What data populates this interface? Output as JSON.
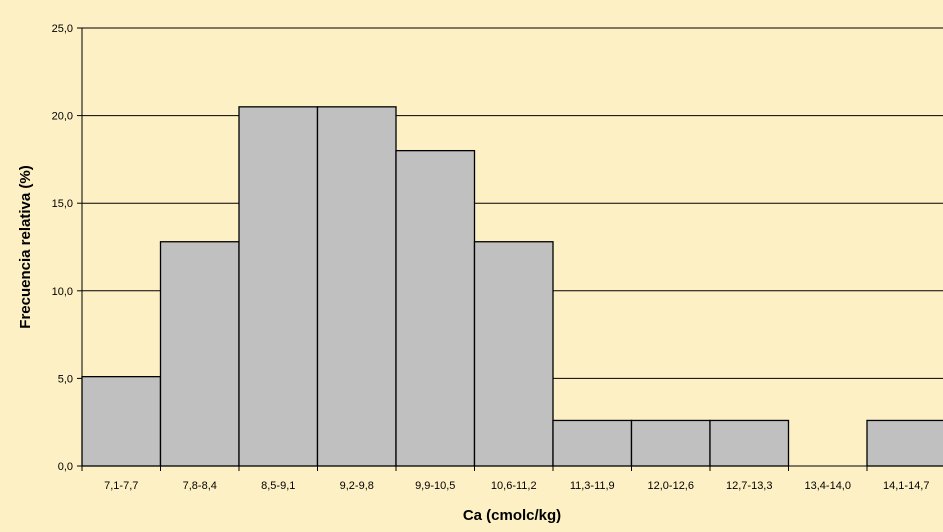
{
  "chart_data": {
    "type": "bar",
    "title": "",
    "xlabel": "Ca (cmolc/kg)",
    "ylabel": "Frecuencia relativa (%)",
    "categories": [
      "7,1-7,7",
      "7,8-8,4",
      "8,5-9,1",
      "9,2-9,8",
      "9,9-10,5",
      "10,6-11,2",
      "11,3-11,9",
      "12,0-12,6",
      "12,7-13,3",
      "13,4-14,0",
      "14,1-14,7"
    ],
    "values": [
      5.1,
      12.8,
      20.5,
      20.5,
      18.0,
      12.8,
      2.6,
      2.6,
      2.6,
      0.0,
      2.6
    ],
    "ylim": [
      0,
      25
    ],
    "yticks": [
      "0,0",
      "5,0",
      "10,0",
      "15,0",
      "20,0",
      "25,0"
    ],
    "grid": true,
    "legend": "none",
    "colors": {
      "background": "#fdf0c4",
      "plot_background": "#fdf0c4",
      "bar_fill": "#c0c0c0",
      "bar_stroke": "#000000",
      "grid": "#000000",
      "text": "#000000"
    }
  }
}
